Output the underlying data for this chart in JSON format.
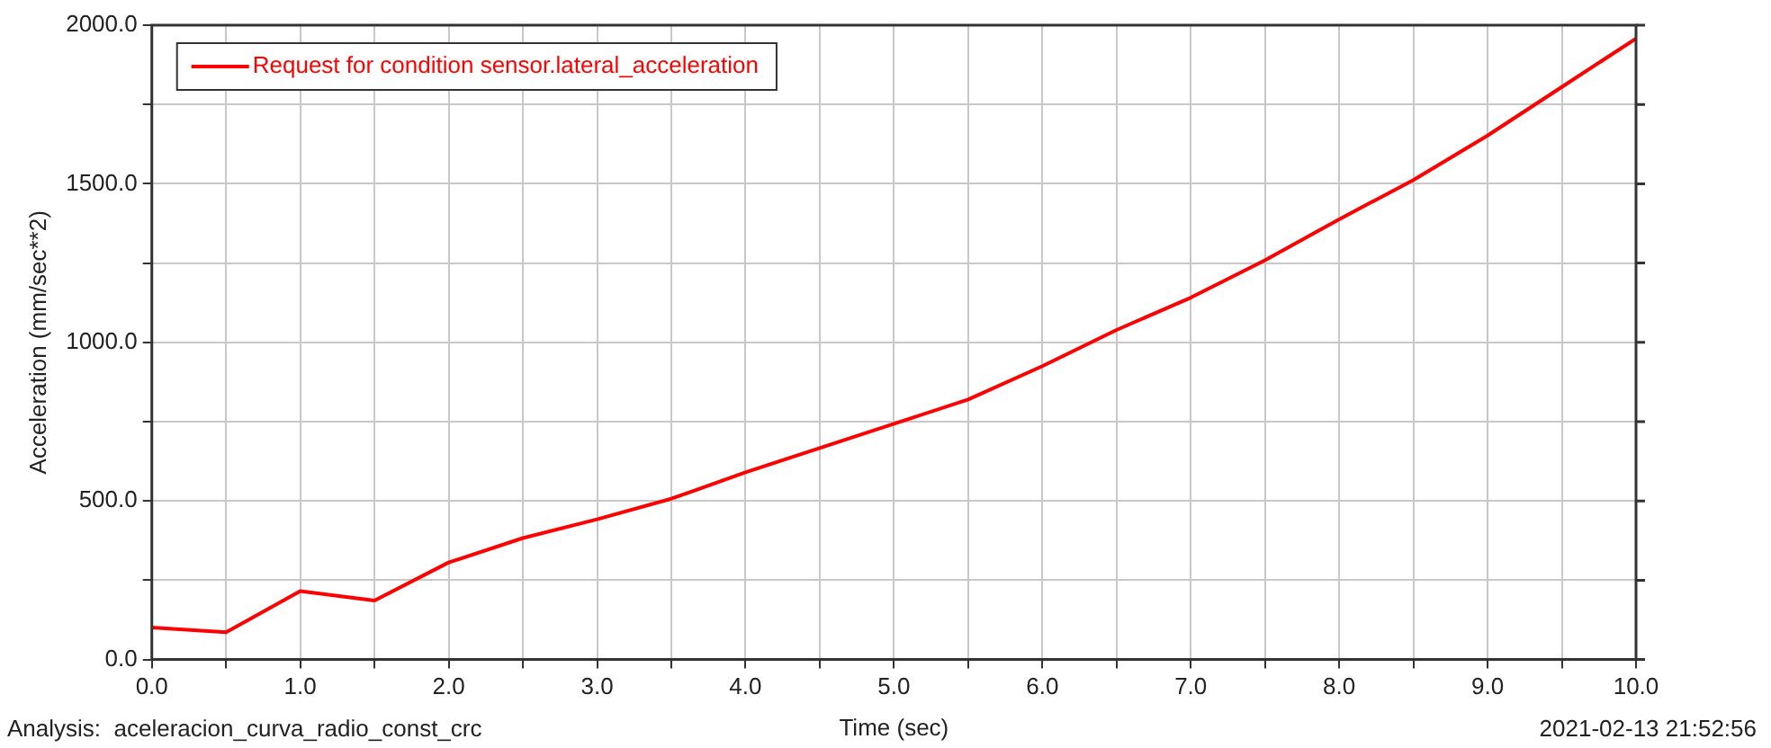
{
  "chart_data": {
    "type": "line",
    "xlabel": "Time (sec)",
    "ylabel": "Acceleration (mm/sec**2)",
    "annotations": [
      "Analysis:  aceleracion_curva_radio_const_crc",
      "2021-02-13 21:52:56"
    ],
    "x": [
      0,
      0.5,
      1,
      1.5,
      2,
      2.5,
      3,
      3.5,
      4,
      4.5,
      5,
      5.5,
      6,
      6.5,
      7,
      7.5,
      8,
      8.5,
      9,
      9.5,
      10
    ],
    "series": [
      {
        "name": "Request for condition sensor.lateral_acceleration",
        "color": "#ff0000",
        "values": [
          101,
          86,
          216,
          186,
          306,
          383,
          442,
          507,
          590,
          667,
          743,
          820,
          925,
          1039,
          1141,
          1259,
          1388,
          1512,
          1652,
          1805,
          1958
        ]
      }
    ],
    "xlim": [
      0,
      10
    ],
    "xticks": [
      {
        "value": 0,
        "label": "0.0"
      },
      {
        "value": 0.5,
        "label": null
      },
      {
        "value": 1,
        "label": "1.0"
      },
      {
        "value": 1.5,
        "label": null
      },
      {
        "value": 2,
        "label": "2.0"
      },
      {
        "value": 2.5,
        "label": null
      },
      {
        "value": 3,
        "label": "3.0"
      },
      {
        "value": 3.5,
        "label": null
      },
      {
        "value": 4,
        "label": "4.0"
      },
      {
        "value": 4.5,
        "label": null
      },
      {
        "value": 5,
        "label": "5.0"
      },
      {
        "value": 5.5,
        "label": null
      },
      {
        "value": 6,
        "label": "6.0"
      },
      {
        "value": 6.5,
        "label": null
      },
      {
        "value": 7,
        "label": "7.0"
      },
      {
        "value": 7.5,
        "label": null
      },
      {
        "value": 8,
        "label": "8.0"
      },
      {
        "value": 8.5,
        "label": null
      },
      {
        "value": 9,
        "label": "9.0"
      },
      {
        "value": 9.5,
        "label": null
      },
      {
        "value": 10,
        "label": "10.0"
      }
    ],
    "ylim": [
      0,
      2000
    ],
    "yticks": [
      {
        "value": 0,
        "label": "0.0"
      },
      {
        "value": 250,
        "label": null
      },
      {
        "value": 500,
        "label": "500.0"
      },
      {
        "value": 750,
        "label": null
      },
      {
        "value": 1000,
        "label": "1000.0"
      },
      {
        "value": 1250,
        "label": null
      },
      {
        "value": 1500,
        "label": "1500.0"
      },
      {
        "value": 1750,
        "label": null
      },
      {
        "value": 2000,
        "label": "2000.0"
      }
    ],
    "grid": true,
    "legend": "top left",
    "marker": "none",
    "line_style": "solid"
  }
}
